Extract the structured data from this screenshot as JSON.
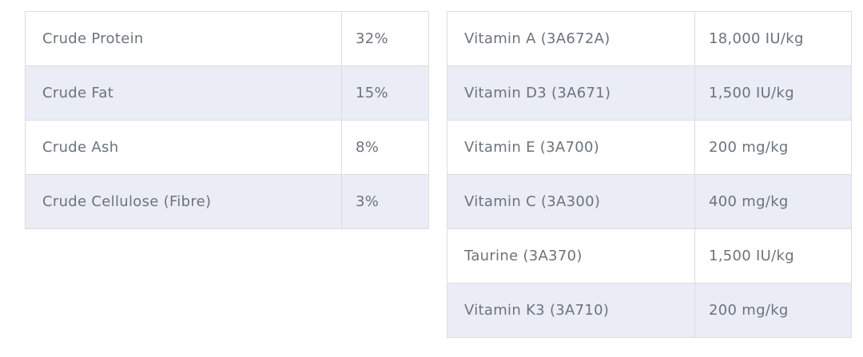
{
  "colors": {
    "background": "#ffffff",
    "row_stripe": "#eaedf5",
    "border": "#dbdde2",
    "text": "#6b737d"
  },
  "analysis_table": {
    "rows": [
      {
        "label": "Crude Protein",
        "value": "32%"
      },
      {
        "label": "Crude Fat",
        "value": "15%"
      },
      {
        "label": "Crude Ash",
        "value": "8%"
      },
      {
        "label": "Crude Cellulose (Fibre)",
        "value": "3%"
      }
    ]
  },
  "additives_table": {
    "rows": [
      {
        "label": "Vitamin A (3A672A)",
        "value": "18,000 IU/kg"
      },
      {
        "label": "Vitamin D3 (3A671)",
        "value": "1,500 IU/kg"
      },
      {
        "label": "Vitamin E (3A700)",
        "value": "200 mg/kg"
      },
      {
        "label": "Vitamin C (3A300)",
        "value": "400 mg/kg"
      },
      {
        "label": "Taurine (3A370)",
        "value": "1,500 IU/kg"
      },
      {
        "label": "Vitamin K3 (3A710)",
        "value": "200 mg/kg"
      }
    ]
  }
}
